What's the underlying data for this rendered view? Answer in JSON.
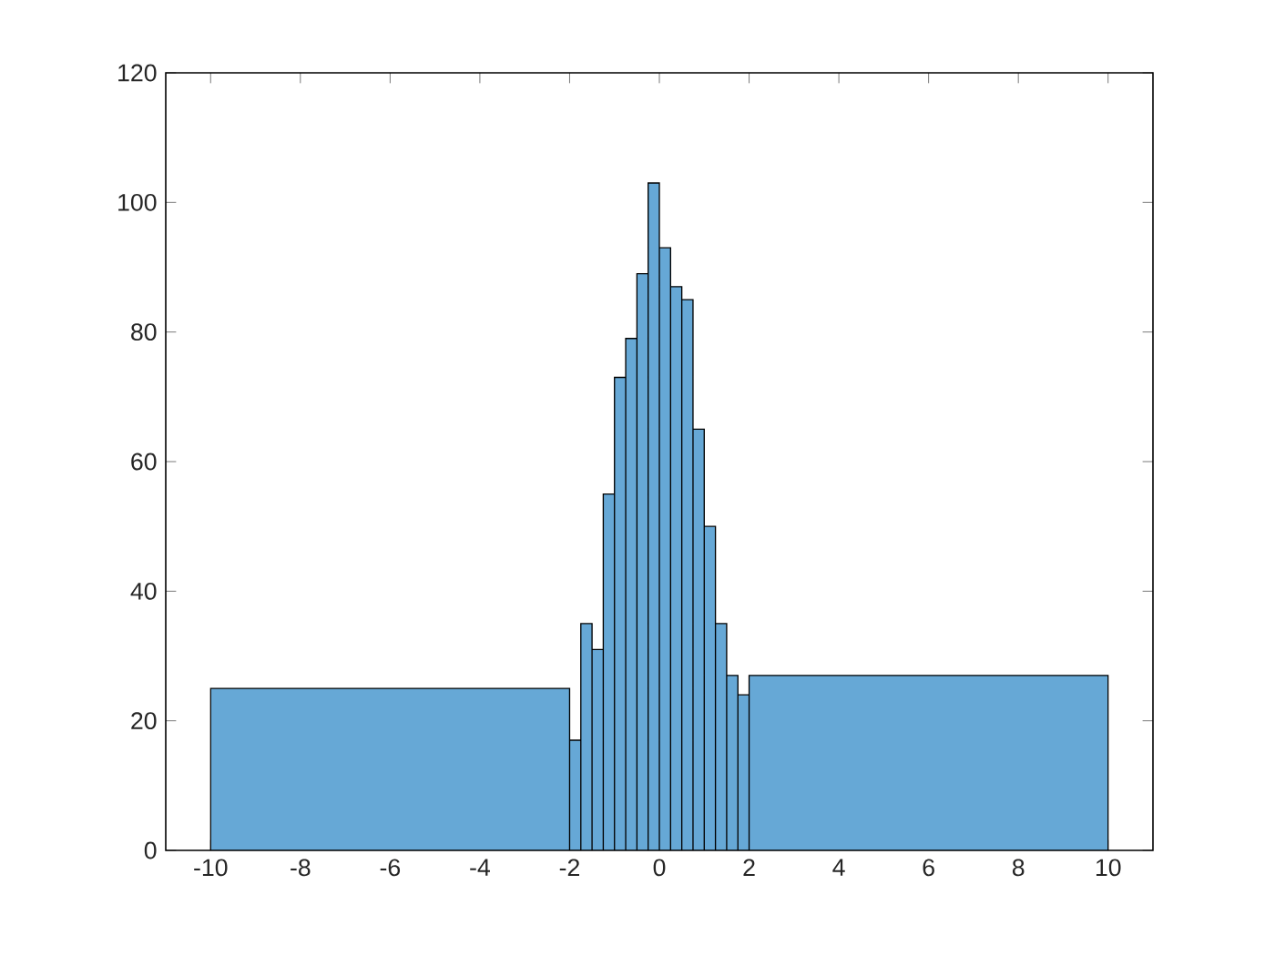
{
  "chart_data": {
    "type": "histogram",
    "bins": [
      -10,
      -2,
      -1.75,
      -1.5,
      -1.25,
      -1,
      -0.75,
      -0.5,
      -0.25,
      0,
      0.25,
      0.5,
      0.75,
      1,
      1.25,
      1.5,
      1.75,
      2,
      10
    ],
    "values": [
      25,
      17,
      35,
      31,
      55,
      73,
      79,
      89,
      103,
      93,
      87,
      85,
      65,
      50,
      35,
      27,
      24,
      27
    ],
    "color": "#66a8d6",
    "xlim": [
      -11,
      11
    ],
    "xticks": [
      -10,
      -8,
      -6,
      -4,
      -2,
      0,
      2,
      4,
      6,
      8,
      10
    ],
    "ylim": [
      0,
      120
    ],
    "yticks": [
      0,
      20,
      40,
      60,
      80,
      100,
      120
    ],
    "grid": false
  }
}
